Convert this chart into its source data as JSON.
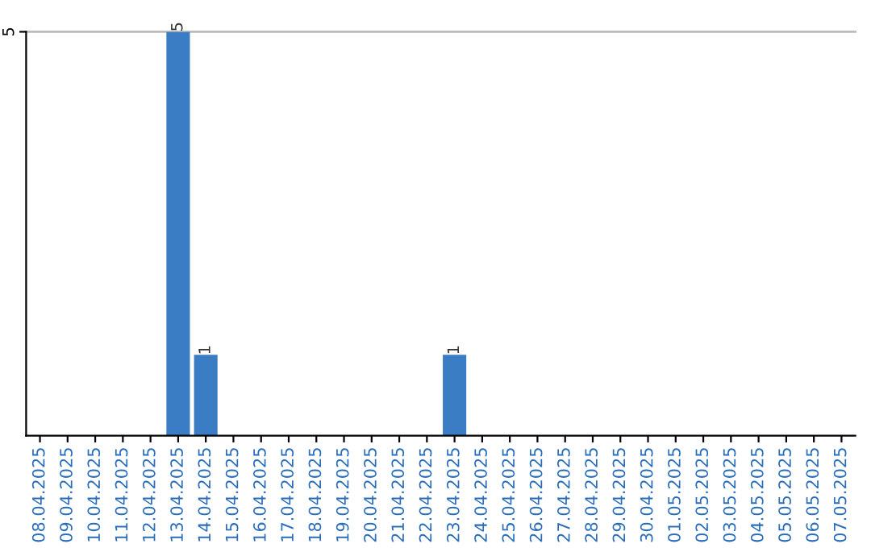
{
  "chart_data": {
    "type": "bar",
    "categories": [
      "08.04.2025",
      "09.04.2025",
      "10.04.2025",
      "11.04.2025",
      "12.04.2025",
      "13.04.2025",
      "14.04.2025",
      "15.04.2025",
      "16.04.2025",
      "17.04.2025",
      "18.04.2025",
      "19.04.2025",
      "20.04.2025",
      "21.04.2025",
      "22.04.2025",
      "23.04.2025",
      "24.04.2025",
      "25.04.2025",
      "26.04.2025",
      "27.04.2025",
      "28.04.2025",
      "29.04.2025",
      "30.04.2025",
      "01.05.2025",
      "02.05.2025",
      "03.05.2025",
      "04.05.2025",
      "05.05.2025",
      "06.05.2025",
      "07.05.2025"
    ],
    "values": [
      0,
      0,
      0,
      0,
      0,
      5,
      1,
      0,
      0,
      0,
      0,
      0,
      0,
      0,
      0,
      1,
      0,
      0,
      0,
      0,
      0,
      0,
      0,
      0,
      0,
      0,
      0,
      0,
      0,
      0
    ],
    "value_labels": [
      null,
      null,
      null,
      null,
      null,
      "5",
      "1",
      null,
      null,
      null,
      null,
      null,
      null,
      null,
      null,
      "1",
      null,
      null,
      null,
      null,
      null,
      null,
      null,
      null,
      null,
      null,
      null,
      null,
      null,
      null
    ],
    "color": "#3b7dc4",
    "ylim": [
      0,
      5
    ],
    "yticks": [
      5
    ],
    "ref_lines": [
      {
        "axis": "y",
        "value": 5,
        "color": "#bbbbbb"
      }
    ],
    "legend": false
  }
}
